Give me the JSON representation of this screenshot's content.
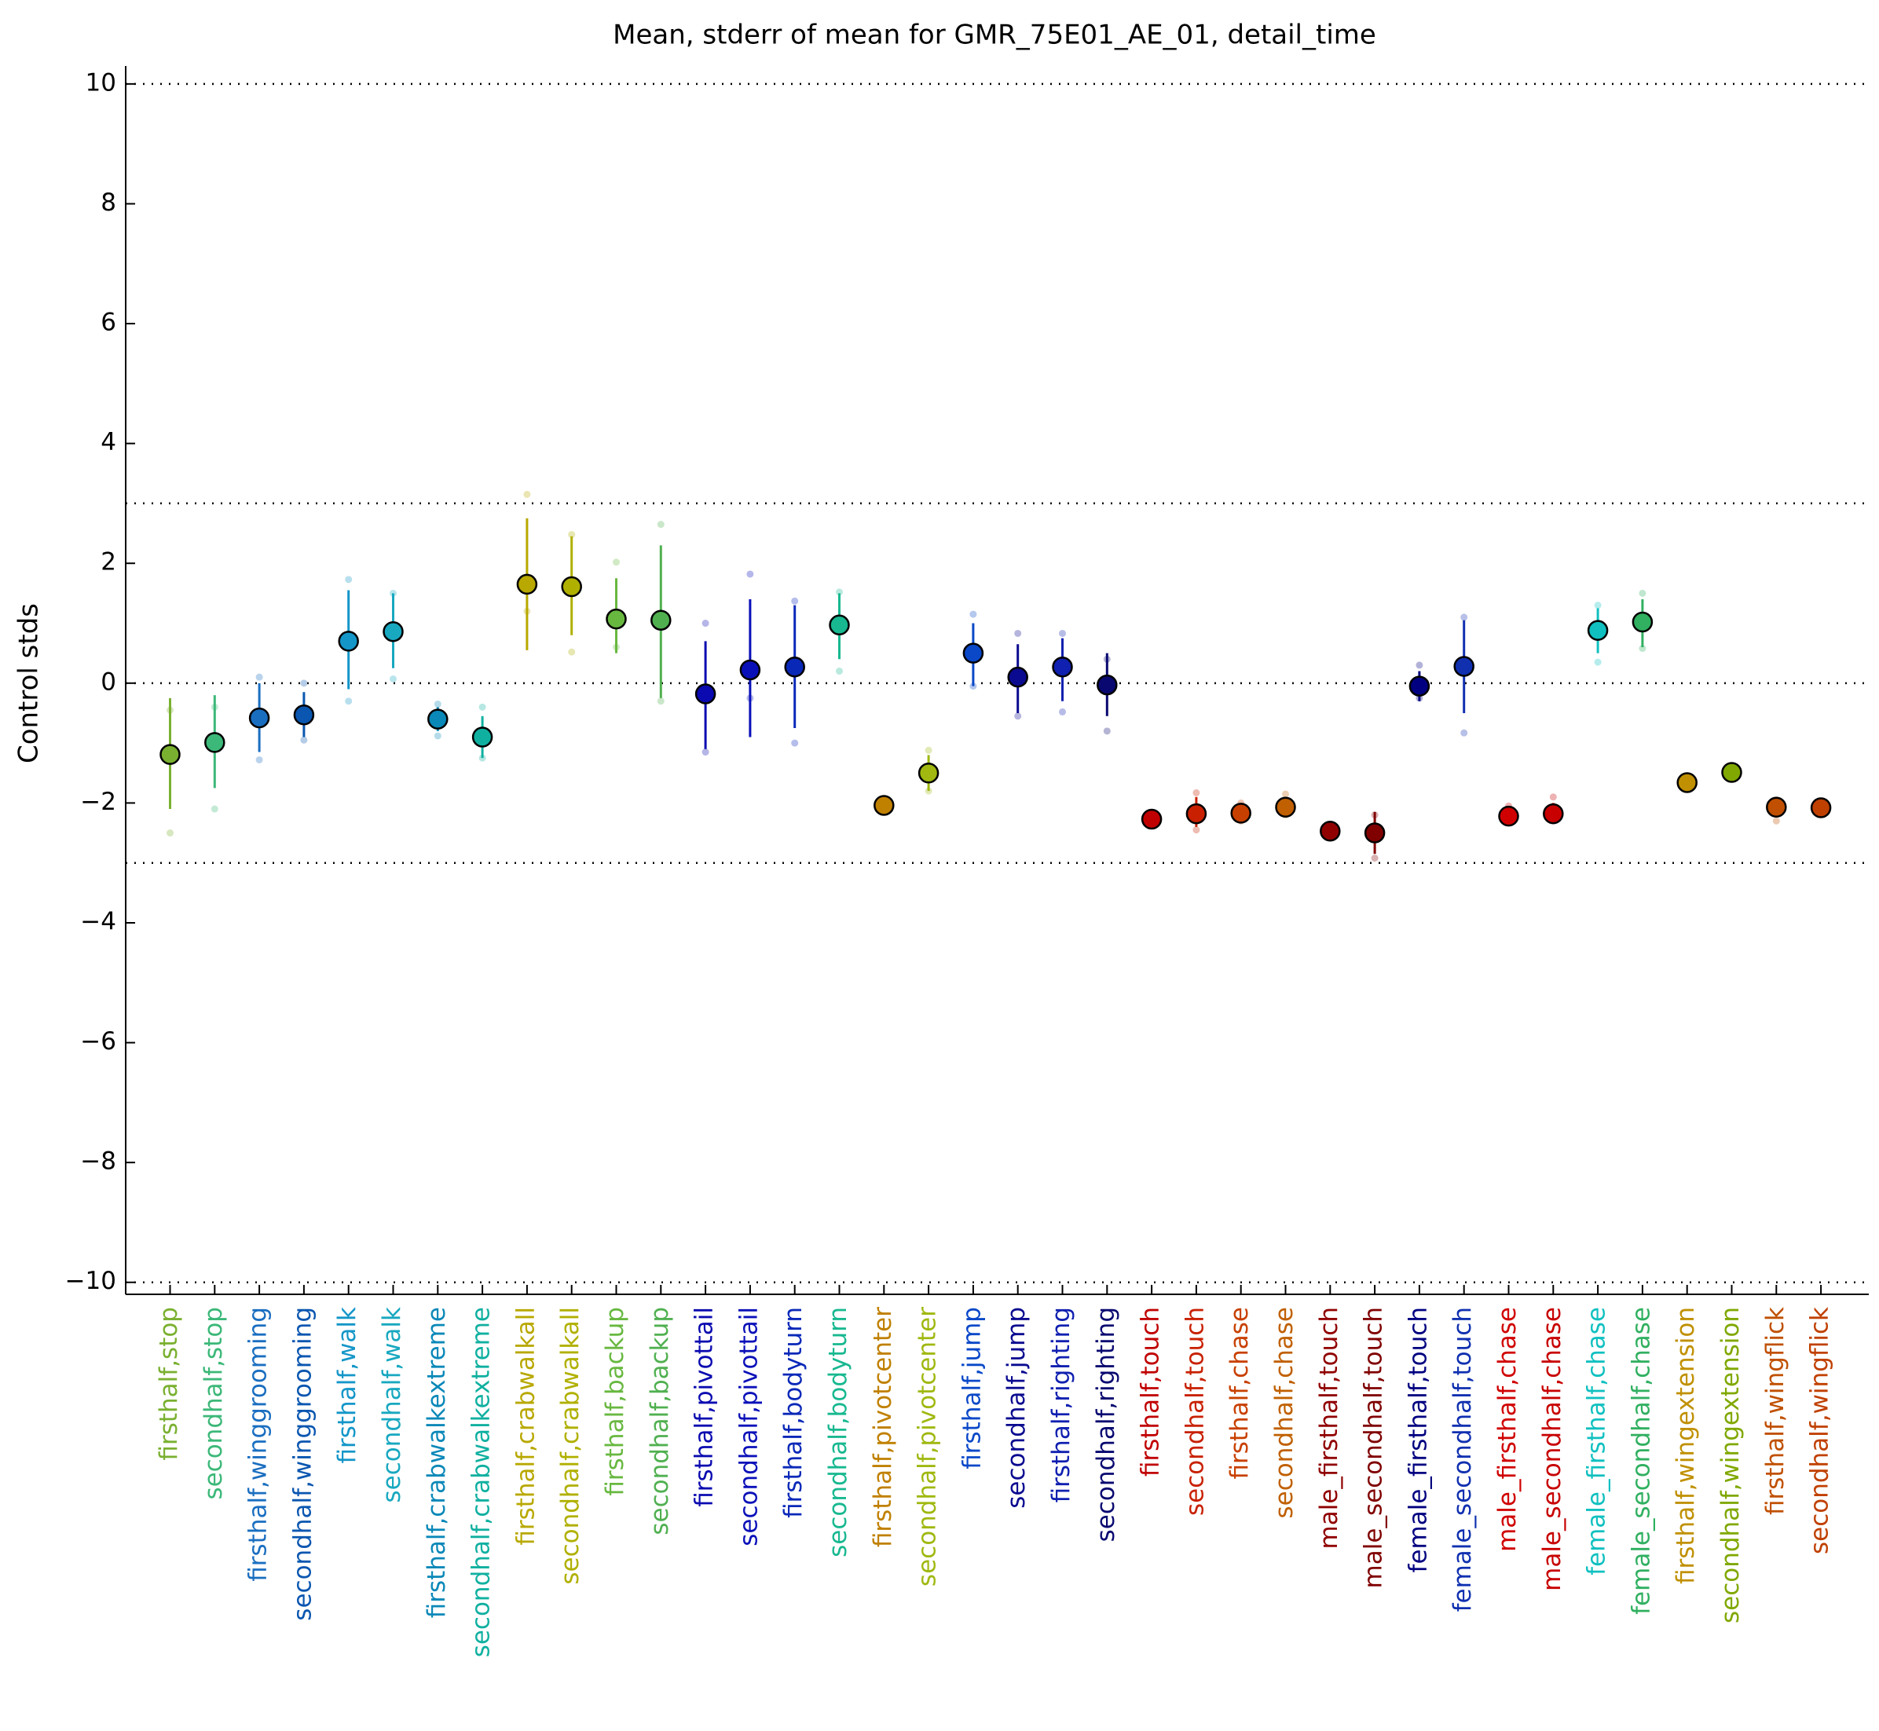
{
  "chart_data": {
    "type": "errorbar",
    "title": "Mean, stderr of mean for GMR_75E01_AE_01, detail_time",
    "y_label": "Control stds",
    "categories": [
      "firsthalf,stop",
      "secondhalf,stop",
      "firsthalf,winggrooming",
      "secondhalf,winggrooming",
      "firsthalf,walk",
      "secondhalf,walk",
      "firsthalf,crabwalkextreme",
      "secondhalf,crabwalkextreme",
      "firsthalf,crabwalkall",
      "secondhalf,crabwalkall",
      "firsthalf,backup",
      "secondhalf,backup",
      "firsthalf,pivottail",
      "secondhalf,pivottail",
      "firsthalf,bodyturn",
      "secondhalf,bodyturn",
      "firsthalf,pivotcenter",
      "secondhalf,pivotcenter",
      "firsthalf,jump",
      "secondhalf,jump",
      "firsthalf,righting",
      "secondhalf,righting",
      "firsthalf,touch",
      "secondhalf,touch",
      "firsthalf,chase",
      "secondhalf,chase",
      "male_firsthalf,touch",
      "male_secondhalf,touch",
      "female_firsthalf,touch",
      "female_secondhalf,touch",
      "male_firsthalf,chase",
      "male_secondhalf,chase",
      "female_firsthalf,chase",
      "female_secondhalf,chase",
      "firsthalf,wingextension",
      "secondhalf,wingextension",
      "firsthalf,wingflick",
      "secondhalf,wingflick"
    ],
    "values": [
      -1.19,
      -0.99,
      -0.58,
      -0.53,
      0.7,
      0.86,
      -0.6,
      -0.9,
      1.65,
      1.61,
      1.07,
      1.05,
      -0.18,
      0.22,
      0.27,
      0.97,
      -2.04,
      -1.5,
      0.5,
      0.1,
      0.27,
      -0.03,
      -2.27,
      -2.18,
      -2.17,
      -2.07,
      -2.47,
      -2.5,
      -0.05,
      0.28,
      -2.22,
      -2.18,
      0.88,
      1.02,
      -1.66,
      -1.49,
      -2.07,
      -2.08
    ],
    "err_upper": [
      -0.25,
      -0.2,
      0,
      -0.15,
      1.55,
      1.5,
      -0.4,
      -0.55,
      2.75,
      2.45,
      1.75,
      2.3,
      0.7,
      1.4,
      1.3,
      1.5,
      -1.95,
      -1.2,
      1.0,
      0.65,
      0.75,
      0.5,
      -2.2,
      -1.9,
      -2.05,
      -1.9,
      -2.4,
      -2.15,
      0.2,
      1.05,
      -2.1,
      -2.0,
      1.25,
      1.4,
      -1.6,
      -1.45,
      -1.95,
      -2.0
    ],
    "err_lower": [
      -2.1,
      -1.75,
      -1.15,
      -0.9,
      -0.1,
      0.25,
      -0.8,
      -1.25,
      0.55,
      0.8,
      0.5,
      -0.25,
      -1.1,
      -0.9,
      -0.75,
      0.4,
      -2.15,
      -1.8,
      -0.05,
      -0.5,
      -0.3,
      -0.55,
      -2.35,
      -2.4,
      -2.3,
      -2.2,
      -2.55,
      -2.85,
      -0.3,
      -0.5,
      -2.3,
      -2.3,
      0.5,
      0.6,
      -1.75,
      -1.55,
      -2.2,
      -2.15
    ],
    "light_upper": [
      -0.45,
      -0.4,
      0.1,
      0,
      1.73,
      1.5,
      -0.35,
      -0.4,
      3.15,
      2.48,
      2.02,
      2.65,
      1.0,
      1.82,
      1.37,
      1.52,
      -2.0,
      -1.12,
      1.15,
      0.83,
      0.83,
      0.4,
      -2.2,
      -1.83,
      -2.0,
      -1.85,
      -2.4,
      -2.2,
      0.3,
      1.1,
      -2.05,
      -1.9,
      1.3,
      1.5,
      -1.6,
      -1.45,
      -1.95,
      -2.0
    ],
    "light_lower": [
      -2.5,
      -2.1,
      -1.28,
      -0.95,
      -0.3,
      0.07,
      -0.88,
      -1.25,
      1.2,
      0.52,
      0.6,
      -0.3,
      -1.15,
      -0.25,
      -1.0,
      0.2,
      -2.1,
      -1.8,
      -0.05,
      -0.55,
      -0.48,
      -0.8,
      -2.3,
      -2.45,
      -2.3,
      -2.2,
      -2.55,
      -2.92,
      -0.25,
      -0.83,
      -2.3,
      -2.3,
      0.35,
      0.58,
      -1.75,
      -1.55,
      -2.3,
      -2.15
    ],
    "colors": [
      "#7ab030",
      "#3cb878",
      "#1a6ec0",
      "#0a56b0",
      "#1496c8",
      "#18a8c0",
      "#0a88b8",
      "#10b0a0",
      "#b8a800",
      "#b0b000",
      "#68b840",
      "#50b050",
      "#0a0ab0",
      "#0a10b8",
      "#0a28b8",
      "#18b890",
      "#c08000",
      "#a0b810",
      "#0a48c8",
      "#0a0a90",
      "#1020b0",
      "#080870",
      "#c00000",
      "#c82000",
      "#c84000",
      "#c06000",
      "#900000",
      "#800000",
      "#000080",
      "#1030b0",
      "#d00000",
      "#c80000",
      "#10c0c0",
      "#30b060",
      "#c09000",
      "#80a800",
      "#c05000",
      "#c04000"
    ],
    "ylim": [
      -10.2,
      10.3
    ],
    "yticks": [
      {
        "value": -10,
        "label": "−10"
      },
      {
        "value": -8,
        "label": "−8"
      },
      {
        "value": -6,
        "label": "−6"
      },
      {
        "value": -4,
        "label": "−4"
      },
      {
        "value": -2,
        "label": "−2"
      },
      0,
      2,
      4,
      6,
      8,
      10
    ],
    "reference_lines": [
      10,
      3,
      0,
      -3,
      -10
    ]
  }
}
